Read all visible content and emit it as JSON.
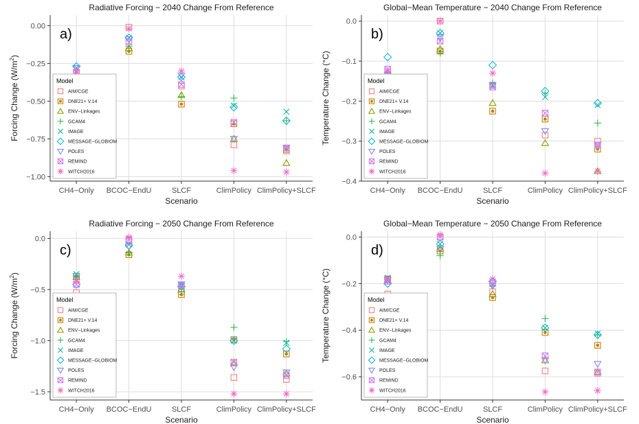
{
  "chart_data": [
    {
      "panel": "a)",
      "type": "scatter",
      "title": "Radiative Forcing − 2040 Change From Reference",
      "xlabel": "Scenario",
      "ylabel": "Forcing Change (W/m²)",
      "categories": [
        "CH4−Only",
        "BCOC−EndU",
        "SLCF",
        "ClimPolicy",
        "ClimPolicy+SLCF"
      ],
      "ylim": [
        -1.03,
        0.07
      ],
      "yticks": [
        0.0,
        -0.25,
        -0.5,
        -0.75,
        -1.0
      ],
      "ytick_labels": [
        "0.00",
        "−0.25",
        "−0.50",
        "−0.75",
        "−1.00"
      ],
      "series": [
        {
          "name": "AIM/CGE",
          "values": [
            -0.39,
            -0.01,
            -0.4,
            -0.79,
            -0.83
          ]
        },
        {
          "name": "DNE21+ V.14",
          "values": [
            -0.31,
            -0.17,
            -0.52,
            -0.65,
            -0.82
          ]
        },
        {
          "name": "ENV−Linkages",
          "values": [
            -0.33,
            -0.15,
            -0.46,
            -0.75,
            -0.91
          ]
        },
        {
          "name": "GCAM4",
          "values": [
            -0.33,
            -0.14,
            -0.47,
            -0.48,
            -0.63
          ]
        },
        {
          "name": "IMAGE",
          "values": [
            -0.28,
            -0.08,
            -0.34,
            -0.53,
            -0.57
          ]
        },
        {
          "name": "MESSAGE−GLOBIOM",
          "values": [
            -0.27,
            -0.08,
            -0.34,
            -0.54,
            -0.63
          ]
        },
        {
          "name": "POLES",
          "values": [
            -0.28,
            -0.09,
            -0.33,
            -0.75,
            -0.81
          ]
        },
        {
          "name": "REMIND",
          "values": [
            -0.31,
            -0.11,
            -0.39,
            -0.64,
            -0.81
          ]
        },
        {
          "name": "WITCH2016",
          "values": [
            -0.3,
            -0.02,
            -0.3,
            -0.96,
            -0.97
          ]
        }
      ],
      "legend": "bottom-left"
    },
    {
      "panel": "b)",
      "type": "scatter",
      "title": "Global−Mean Temperature − 2040 Change From Reference",
      "xlabel": "Scenario",
      "ylabel": "Temperature Change (°C)",
      "categories": [
        "CH4−Only",
        "BCOC−EndU",
        "SLCF",
        "ClimPolicy",
        "ClimPolicy+SLCF"
      ],
      "ylim": [
        -0.4,
        0.015
      ],
      "yticks": [
        0.0,
        -0.1,
        -0.2,
        -0.3,
        -0.4
      ],
      "ytick_labels": [
        "0.0",
        "−0.1",
        "−0.2",
        "−0.3",
        "−0.4"
      ],
      "series": [
        {
          "name": "AIM/CGE",
          "values": [
            -0.155,
            0.0,
            -0.16,
            -0.285,
            -0.3
          ]
        },
        {
          "name": "DNE21+ V.14",
          "values": [
            -0.135,
            -0.075,
            -0.225,
            -0.245,
            -0.32
          ]
        },
        {
          "name": "ENV−Linkages",
          "values": [
            -0.145,
            -0.07,
            -0.205,
            -0.305,
            -0.375
          ]
        },
        {
          "name": "GCAM4",
          "values": [
            -0.13,
            -0.08,
            -0.155,
            -0.18,
            -0.255
          ]
        },
        {
          "name": "IMAGE",
          "values": [
            -0.125,
            -0.03,
            -0.16,
            -0.19,
            -0.21
          ]
        },
        {
          "name": "MESSAGE−GLOBIOM",
          "values": [
            -0.09,
            -0.03,
            -0.11,
            -0.175,
            -0.205
          ]
        },
        {
          "name": "POLES",
          "values": [
            -0.135,
            -0.04,
            -0.16,
            -0.275,
            -0.31
          ]
        },
        {
          "name": "REMIND",
          "values": [
            -0.12,
            -0.05,
            -0.165,
            -0.23,
            -0.31
          ]
        },
        {
          "name": "WITCH2016",
          "values": [
            -0.125,
            0.0,
            -0.13,
            -0.38,
            -0.375
          ]
        }
      ],
      "legend": "bottom-left"
    },
    {
      "panel": "c)",
      "type": "scatter",
      "title": "Radiative Forcing − 2050 Change From Reference",
      "xlabel": "Scenario",
      "ylabel": "Forcing Change (W/m²)",
      "categories": [
        "CH4−Only",
        "BCOC−EndU",
        "SLCF",
        "ClimPolicy",
        "ClimPolicy+SLCF"
      ],
      "ylim": [
        -1.58,
        0.07
      ],
      "yticks": [
        0.0,
        -0.5,
        -1.0,
        -1.5
      ],
      "ytick_labels": [
        "0.0",
        "−0.5",
        "−1.0",
        "−1.5"
      ],
      "series": [
        {
          "name": "AIM/CGE",
          "values": [
            -0.53,
            -0.02,
            -0.52,
            -1.36,
            -1.38
          ]
        },
        {
          "name": "DNE21+ V.14",
          "values": [
            -0.37,
            -0.16,
            -0.55,
            -0.99,
            -1.13
          ]
        },
        {
          "name": "ENV−Linkages",
          "values": [
            -0.38,
            -0.14,
            -0.5,
            -1.22,
            -1.32
          ]
        },
        {
          "name": "GCAM4",
          "values": [
            -0.37,
            -0.14,
            -0.52,
            -0.87,
            -1.01
          ]
        },
        {
          "name": "IMAGE",
          "values": [
            -0.35,
            -0.06,
            -0.45,
            -1.0,
            -1.02
          ]
        },
        {
          "name": "MESSAGE−GLOBIOM",
          "values": [
            -0.45,
            -0.07,
            -0.47,
            -1.0,
            -1.08
          ]
        },
        {
          "name": "POLES",
          "values": [
            -0.37,
            -0.08,
            -0.45,
            -1.26,
            -1.31
          ]
        },
        {
          "name": "REMIND",
          "values": [
            -0.45,
            -0.01,
            -0.46,
            -1.21,
            -1.34
          ]
        },
        {
          "name": "WITCH2016",
          "values": [
            -0.42,
            0.01,
            -0.37,
            -1.52,
            -1.52
          ]
        }
      ],
      "legend": "bottom-left"
    },
    {
      "panel": "d)",
      "type": "scatter",
      "title": "Global−Mean Temperature − 2050 Change From Reference",
      "xlabel": "Scenario",
      "ylabel": "Temperature Change (°C)",
      "categories": [
        "CH4−Only",
        "BCOC−EndU",
        "SLCF",
        "ClimPolicy",
        "ClimPolicy+SLCF"
      ],
      "ylim": [
        -0.7,
        0.025
      ],
      "yticks": [
        0.0,
        -0.2,
        -0.4,
        -0.6
      ],
      "ytick_labels": [
        "0.0",
        "−0.2",
        "−0.4",
        "−0.6"
      ],
      "series": [
        {
          "name": "AIM/CGE",
          "values": [
            -0.245,
            0.0,
            -0.235,
            -0.575,
            -0.585
          ]
        },
        {
          "name": "DNE21+ V.14",
          "values": [
            -0.18,
            -0.06,
            -0.26,
            -0.41,
            -0.465
          ]
        },
        {
          "name": "ENV−Linkages",
          "values": [
            -0.185,
            -0.05,
            -0.245,
            -0.53,
            -0.58
          ]
        },
        {
          "name": "GCAM4",
          "values": [
            -0.18,
            -0.08,
            -0.21,
            -0.35,
            -0.42
          ]
        },
        {
          "name": "IMAGE",
          "values": [
            -0.175,
            -0.03,
            -0.2,
            -0.39,
            -0.415
          ]
        },
        {
          "name": "MESSAGE−GLOBIOM",
          "values": [
            -0.2,
            -0.03,
            -0.19,
            -0.39,
            -0.42
          ]
        },
        {
          "name": "POLES",
          "values": [
            -0.185,
            -0.05,
            -0.21,
            -0.53,
            -0.545
          ]
        },
        {
          "name": "REMIND",
          "values": [
            -0.19,
            0.0,
            -0.2,
            -0.51,
            -0.58
          ]
        },
        {
          "name": "WITCH2016",
          "values": [
            -0.18,
            0.01,
            -0.18,
            -0.665,
            -0.66
          ]
        }
      ],
      "legend": "bottom-left"
    }
  ],
  "legend": {
    "title": "Model",
    "entries": [
      {
        "name": "AIM/CGE",
        "color": "#F08080",
        "shape": "square"
      },
      {
        "name": "DNE21+ V.14",
        "color": "#C08000",
        "shape": "square-dot"
      },
      {
        "name": "ENV−Linkages",
        "color": "#8C9A00",
        "shape": "triangle"
      },
      {
        "name": "GCAM4",
        "color": "#2DB84D",
        "shape": "plus"
      },
      {
        "name": "IMAGE",
        "color": "#12B8A0",
        "shape": "cross"
      },
      {
        "name": "MESSAGE−GLOBIOM",
        "color": "#1EB4D8",
        "shape": "diamond"
      },
      {
        "name": "POLES",
        "color": "#7E8CF0",
        "shape": "triangle-down"
      },
      {
        "name": "REMIND",
        "color": "#CE79EC",
        "shape": "square-cross"
      },
      {
        "name": "WITCH2016",
        "color": "#F06BC8",
        "shape": "asterisk"
      }
    ]
  },
  "style": {
    "grid_color": "#dddddd",
    "axis_color": "#333333",
    "grid": true
  }
}
